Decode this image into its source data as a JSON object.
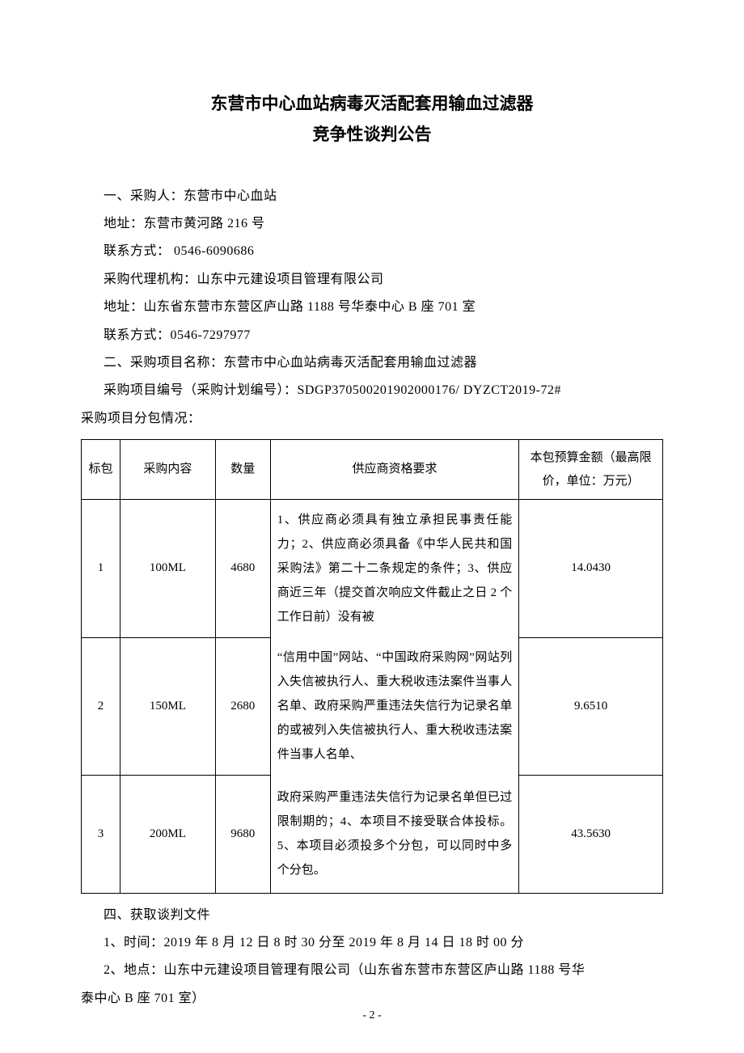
{
  "title": {
    "line1": "东营市中心血站病毒灭活配套用输血过滤器",
    "line2": "竞争性谈判公告"
  },
  "info": {
    "purchaser": "一、采购人：东营市中心血站",
    "addr1": "地址：东营市黄河路 216 号",
    "contact1": "联系方式： 0546-6090686",
    "agency": "采购代理机构：山东中元建设项目管理有限公司",
    "addr2": "地址：山东省东营市东营区庐山路 1188 号华泰中心 B 座 701 室",
    "contact2": "联系方式：0546-7297977",
    "project_name": "二、采购项目名称：东营市中心血站病毒灭活配套用输血过滤器",
    "project_code": "采购项目编号（采购计划编号）：SDGP370500201902000176/ DYZCT2019-72#",
    "package_intro": "采购项目分包情况："
  },
  "table": {
    "headers": {
      "index": "标包",
      "content": "采购内容",
      "qty": "数量",
      "req": "供应商资格要求",
      "budget": "本包预算金额（最高限价，单位：万元）"
    },
    "rows": [
      {
        "index": "1",
        "content": "100ML",
        "qty": "4680",
        "budget": "14.0430"
      },
      {
        "index": "2",
        "content": "150ML",
        "qty": "2680",
        "budget": "9.6510"
      },
      {
        "index": "3",
        "content": "200ML",
        "qty": "9680",
        "budget": "43.5630"
      }
    ],
    "req_parts": {
      "p1": "1、供应商必须具有独立承担民事责任能力；2、供应商必须具备《中华人民共和国采购法》第二十二条规定的条件；3、供应商近三年（提交首次响应文件截止之日 2 个工作日前）没有被",
      "p2": "“信用中国”网站、“中国政府采购网”网站列入失信被执行人、重大税收违法案件当事人名单、政府采购严重违法失信行为记录名单的或被列入失信被执行人、重大税收违法案件当事人名单、",
      "p3": "政府采购严重违法失信行为记录名单但已过限制期的；4、本项目不接受联合体投标。5、本项目必须投多个分包，可以同时中多个分包。"
    }
  },
  "footer": {
    "section4": "四、获取谈判文件",
    "time": "1、时间：2019 年 8 月 12 日 8 时 30 分至 2019 年 8 月 14 日 18 时 00 分",
    "place1": "2、地点：山东中元建设项目管理有限公司（山东省东营市东营区庐山路 1188 号华",
    "place2": "泰中心 B 座 701 室）"
  },
  "page_num": "- 2 -"
}
